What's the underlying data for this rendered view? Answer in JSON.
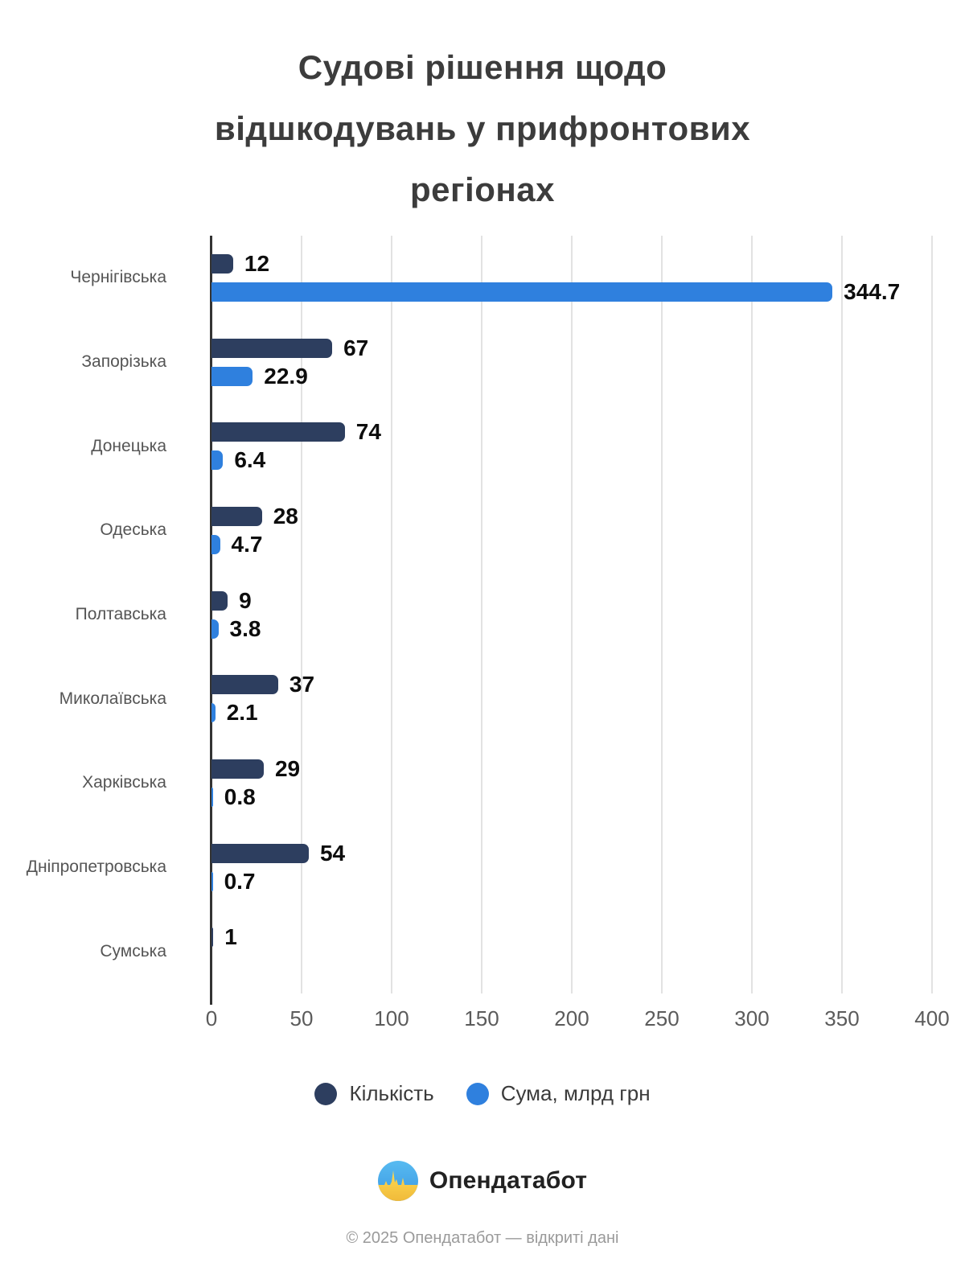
{
  "title": "Судові рішення щодо відшкодувань у прифронтових регіонах",
  "title_lines": [
    "Судові рішення щодо",
    "відшкодувань у прифронтових",
    "регіонах"
  ],
  "chart_data": {
    "type": "bar",
    "orientation": "horizontal",
    "categories": [
      "Чернігівська",
      "Запорізька",
      "Донецька",
      "Одеська",
      "Полтавська",
      "Миколаївська",
      "Харківська",
      "Дніпропетровська",
      "Сумська"
    ],
    "series": [
      {
        "name": "Кількість",
        "color": "#2d3e5f",
        "values": [
          12,
          67,
          74,
          28,
          9,
          37,
          29,
          54,
          1
        ]
      },
      {
        "name": "Сума, млрд грн",
        "color": "#2f80de",
        "values": [
          344.7,
          22.9,
          6.4,
          4.7,
          3.8,
          2.1,
          0.8,
          0.7,
          null
        ]
      }
    ],
    "xlim": [
      0,
      400
    ],
    "xticks": [
      0,
      50,
      100,
      150,
      200,
      250,
      300,
      350,
      400
    ],
    "grid": true,
    "legend_position": "bottom",
    "value_labels": true
  },
  "colors": {
    "count": "#2d3e5f",
    "sum": "#2f80de",
    "axis": "#333333",
    "gridline": "#e2e2e2",
    "title_text": "#3c3c3c",
    "category_text": "#555555",
    "value_text": "#0d0d0d",
    "logo_blue": "#45a7ea",
    "logo_yellow": "#ffd84e"
  },
  "footer": {
    "brand": "Опендатабот",
    "copyright": "© 2025 Опендатабот — відкриті дані"
  }
}
